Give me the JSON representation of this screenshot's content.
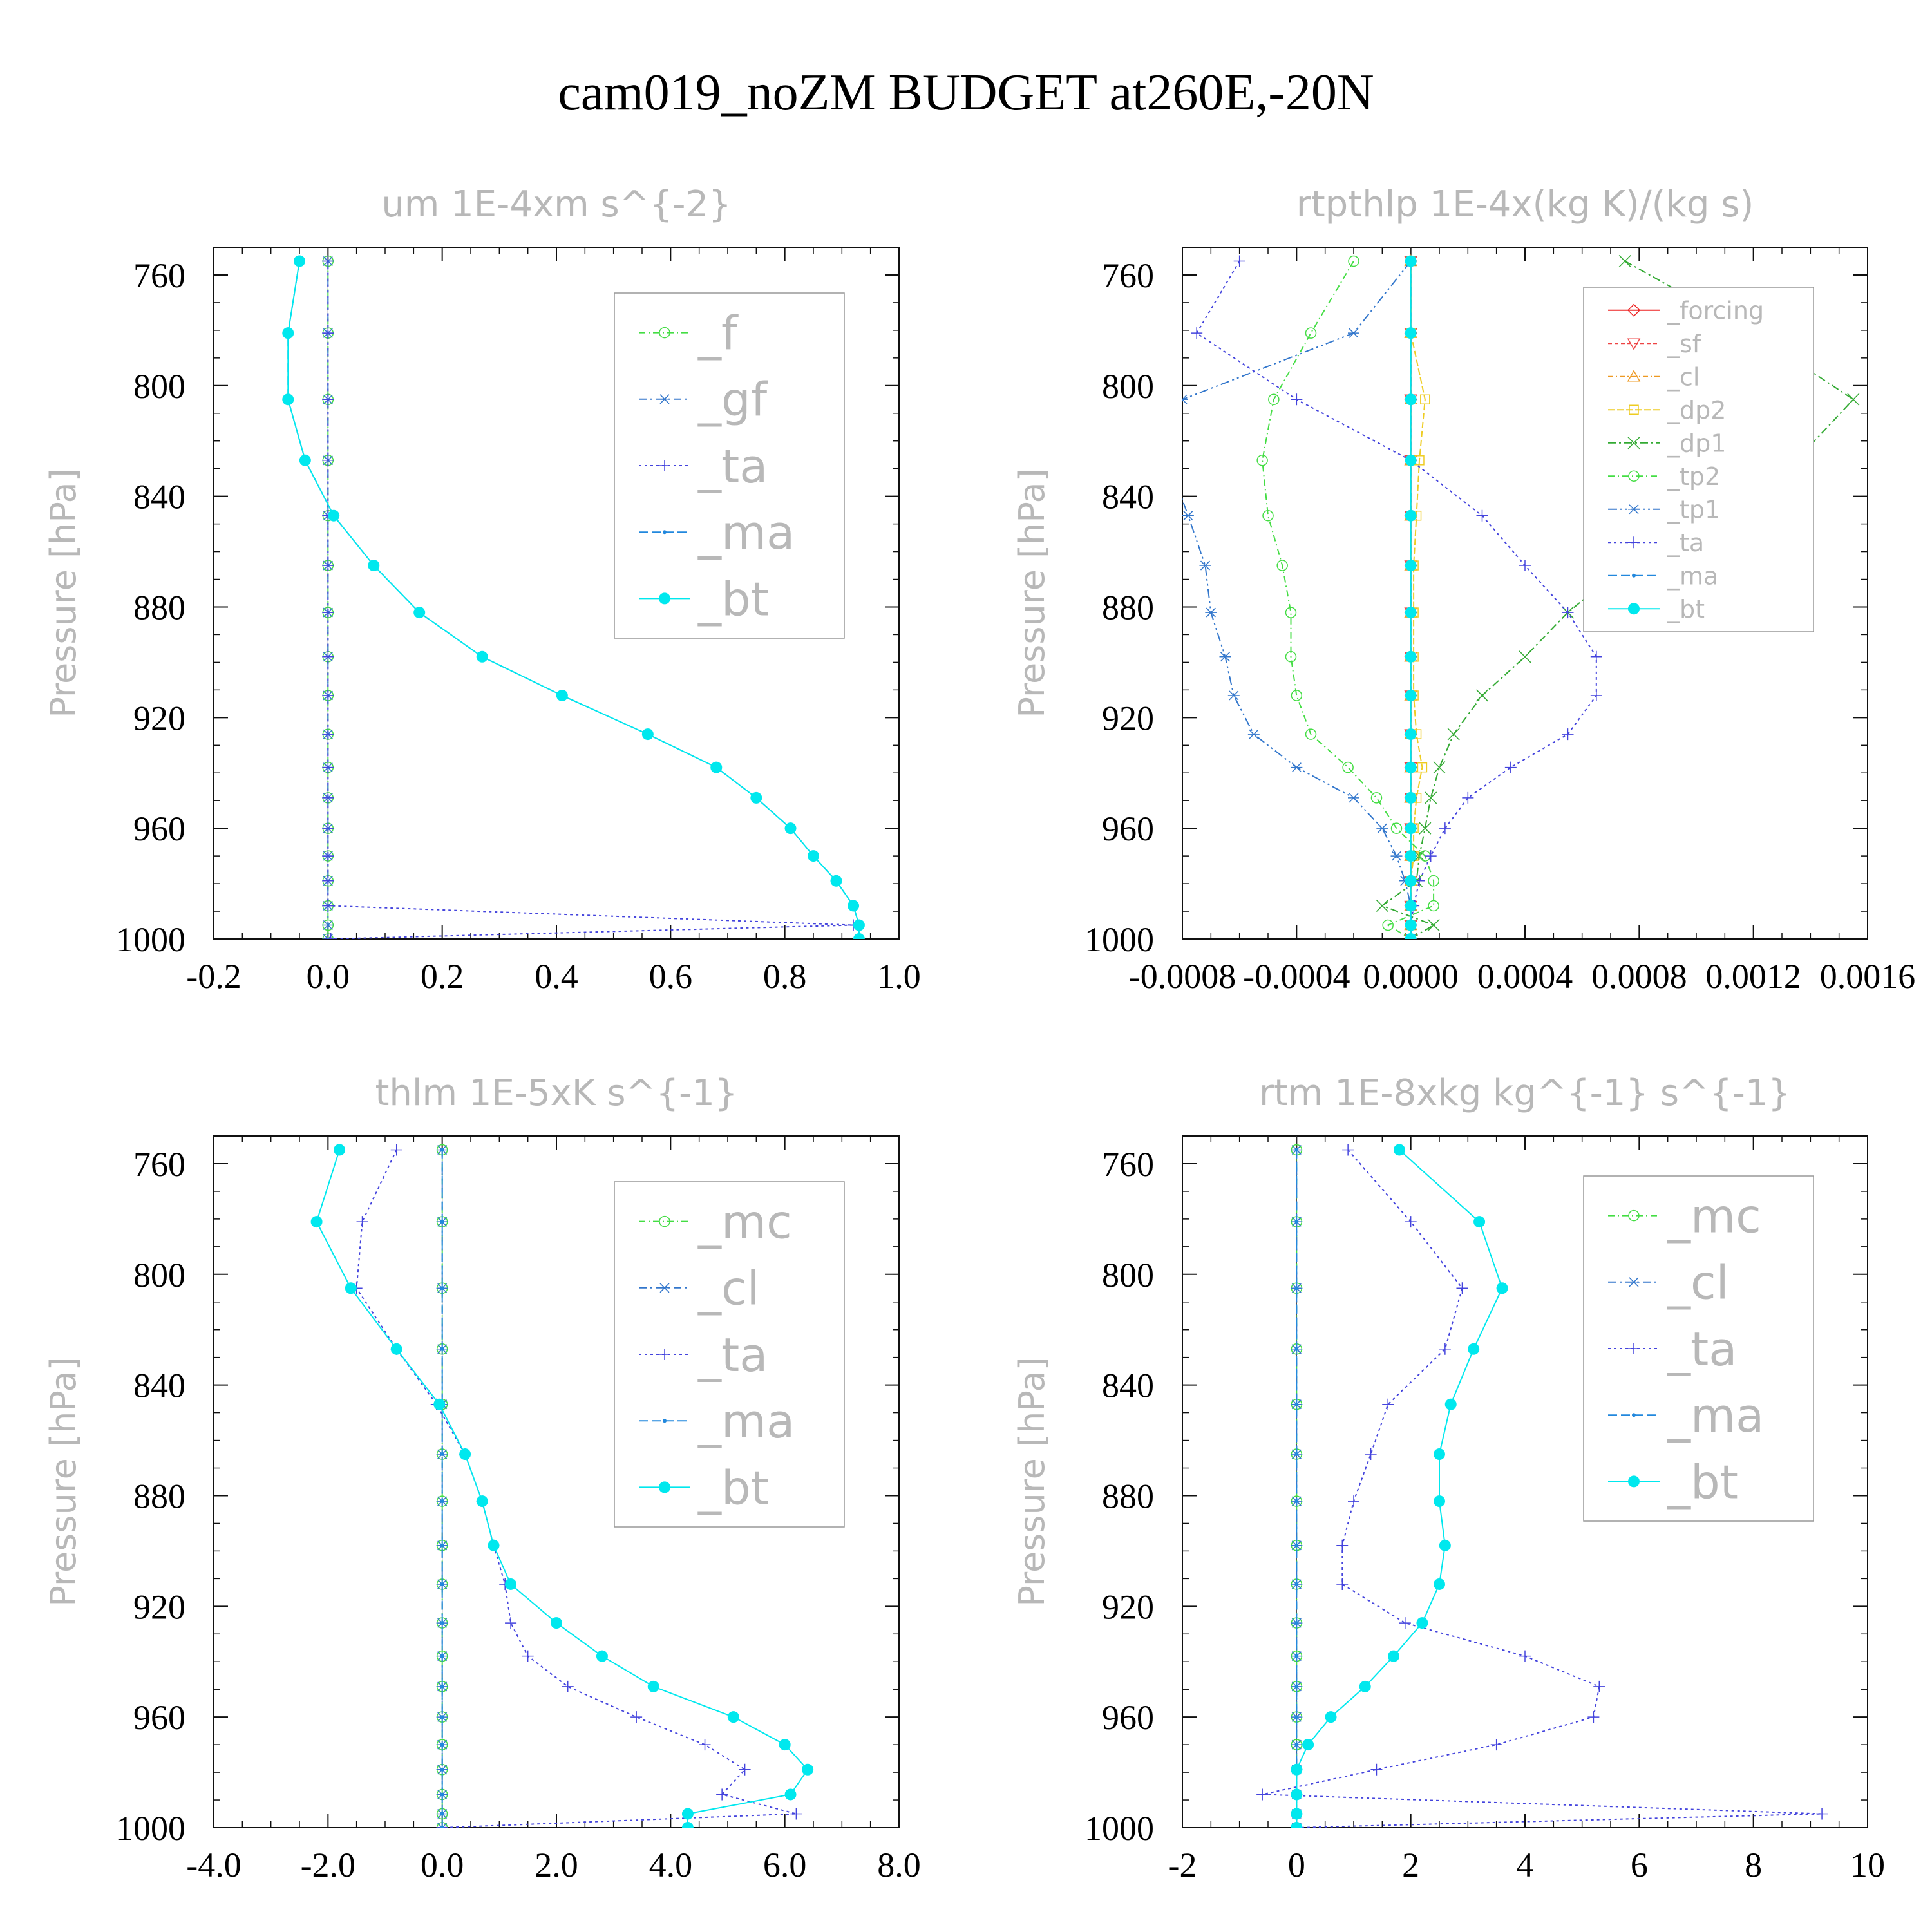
{
  "figure": {
    "title": "cam019_noZM  BUDGET at260E,-20N"
  },
  "chart_data": [
    {
      "type": "line",
      "title": "um   1E-4xm s^{-2}",
      "ylabel": "Pressure [hPa]",
      "xlim": [
        -0.2,
        1.0
      ],
      "ylim": [
        750,
        1000
      ],
      "y_inverted": true,
      "xticks": [
        -0.2,
        0.0,
        0.2,
        0.4,
        0.6,
        0.8,
        1.0
      ],
      "xtick_labels": [
        "-0.2",
        "0.0",
        "0.2",
        "0.4",
        "0.6",
        "0.8",
        "1.0"
      ],
      "yticks": [
        760,
        800,
        840,
        880,
        920,
        960,
        1000
      ],
      "ytick_labels": [
        "760",
        "800",
        "840",
        "880",
        "920",
        "960",
        "1000"
      ],
      "legend": "top-right",
      "levels": [
        755,
        781,
        805,
        827,
        847,
        865,
        882,
        898,
        912,
        926,
        938,
        949,
        960,
        970,
        979,
        988,
        995,
        1000
      ],
      "series": [
        {
          "name": "_f",
          "color": "#44dd44",
          "marker": "circle-open",
          "dash": "10,5,2,5",
          "values": [
            0,
            0,
            0,
            0,
            0,
            0,
            0,
            0,
            0,
            0,
            0,
            0,
            0,
            0,
            0,
            0,
            0,
            0
          ]
        },
        {
          "name": "_gf",
          "color": "#3377cc",
          "marker": "asterisk",
          "dash": "12,6,3,6",
          "values": [
            0,
            0,
            0,
            0,
            0,
            0,
            0,
            0,
            0,
            0,
            0,
            0,
            0,
            0,
            0,
            0,
            0,
            0
          ]
        },
        {
          "name": "_ta",
          "color": "#4444dd",
          "marker": "plus",
          "dash": "4,5",
          "values": [
            0,
            0,
            0,
            0,
            0,
            0,
            0,
            0,
            0,
            0,
            0,
            0,
            0,
            0,
            0,
            0,
            0.92,
            0.005
          ]
        },
        {
          "name": "_ma",
          "color": "#2288dd",
          "marker": "dot",
          "dash": "14,6",
          "values": [
            -0.05,
            -0.07,
            -0.07,
            -0.04,
            0.01,
            0.08,
            0.16,
            0.27,
            0.41,
            0.56,
            0.68,
            0.75,
            0.81,
            0.85,
            0.89,
            0.92,
            0.93,
            0.93
          ]
        },
        {
          "name": "_bt",
          "color": "#00e8ee",
          "marker": "filled-circle",
          "dash": "",
          "values": [
            -0.05,
            -0.07,
            -0.07,
            -0.04,
            0.01,
            0.08,
            0.16,
            0.27,
            0.41,
            0.56,
            0.68,
            0.75,
            0.81,
            0.85,
            0.89,
            0.92,
            0.93,
            0.93
          ]
        }
      ]
    },
    {
      "type": "line",
      "title": "rtpthlp   1E-4x(kg K)/(kg s)",
      "ylabel": "Pressure [hPa]",
      "xlim": [
        -0.0008,
        0.0016
      ],
      "ylim": [
        750,
        1000
      ],
      "y_inverted": true,
      "xticks": [
        -0.0008,
        -0.0004,
        0.0,
        0.0004,
        0.0008,
        0.0012,
        0.0016
      ],
      "xtick_labels": [
        "-0.0008",
        "-0.0004",
        "0.0000",
        "0.0004",
        "0.0008",
        "0.0012",
        "0.0016"
      ],
      "yticks": [
        760,
        800,
        840,
        880,
        920,
        960,
        1000
      ],
      "ytick_labels": [
        "760",
        "800",
        "840",
        "880",
        "920",
        "960",
        "1000"
      ],
      "legend": "top-right",
      "levels": [
        755,
        781,
        805,
        827,
        847,
        865,
        882,
        898,
        912,
        926,
        938,
        949,
        960,
        970,
        979,
        988,
        995,
        1000
      ],
      "series": [
        {
          "name": "_forcing",
          "color": "#ee2222",
          "marker": "diamond-open",
          "dash": "",
          "values": [
            0,
            0,
            0,
            0,
            0,
            0,
            0,
            0,
            0,
            0,
            0,
            0,
            0,
            0,
            0,
            0,
            0,
            0
          ]
        },
        {
          "name": "_sf",
          "color": "#ee4444",
          "marker": "triangle-down",
          "dash": "6,4",
          "values": [
            0,
            0,
            0,
            0,
            0,
            0,
            0,
            0,
            0,
            0,
            0,
            0,
            0,
            0,
            0,
            0,
            0,
            0
          ]
        },
        {
          "name": "_cl",
          "color": "#ee9922",
          "marker": "triangle-up",
          "dash": "8,4,2,4",
          "values": [
            0,
            0,
            0,
            0,
            0,
            0,
            0,
            0,
            0,
            0,
            0,
            0,
            0,
            0,
            0,
            0,
            0,
            0
          ]
        },
        {
          "name": "_dp2",
          "color": "#eecc22",
          "marker": "square-open",
          "dash": "10,4",
          "values": [
            0,
            0,
            5e-05,
            3e-05,
            2e-05,
            1e-05,
            1e-05,
            1e-05,
            1e-05,
            2e-05,
            4e-05,
            2e-05,
            1e-05,
            1e-05,
            0,
            0,
            0,
            0
          ]
        },
        {
          "name": "_dp1",
          "color": "#33aa33",
          "marker": "x",
          "dash": "12,5,3,5",
          "values": [
            0.00075,
            0.0012,
            0.00155,
            0.00135,
            0.00095,
            0.00075,
            0.00055,
            0.0004,
            0.00025,
            0.00015,
            0.0001,
            7e-05,
            5e-05,
            3e-05,
            2e-05,
            -0.0001,
            8e-05,
            0
          ]
        },
        {
          "name": "_tp2",
          "color": "#44dd44",
          "marker": "circle-open",
          "dash": "10,5,2,5",
          "values": [
            -0.0002,
            -0.00035,
            -0.00048,
            -0.00052,
            -0.0005,
            -0.00045,
            -0.00042,
            -0.00042,
            -0.0004,
            -0.00035,
            -0.00022,
            -0.00012,
            -5e-05,
            5e-05,
            8e-05,
            8e-05,
            -8e-05,
            0
          ]
        },
        {
          "name": "_tp1",
          "color": "#3377cc",
          "marker": "asterisk",
          "dash": "14,5,3,5,3,5",
          "values": [
            0,
            -0.0002,
            -0.0008,
            -0.00085,
            -0.00078,
            -0.00072,
            -0.0007,
            -0.00065,
            -0.00062,
            -0.00055,
            -0.0004,
            -0.0002,
            -0.0001,
            -5e-05,
            -2e-05,
            0,
            0,
            0
          ]
        },
        {
          "name": "_ta",
          "color": "#4444dd",
          "marker": "plus",
          "dash": "4,5",
          "values": [
            -0.0006,
            -0.00075,
            -0.0004,
            0.0,
            0.00025,
            0.0004,
            0.00055,
            0.00065,
            0.00065,
            0.00055,
            0.00035,
            0.0002,
            0.00012,
            7e-05,
            3e-05,
            1e-05,
            0,
            0
          ]
        },
        {
          "name": "_ma",
          "color": "#2288dd",
          "marker": "dot",
          "dash": "14,6",
          "values": [
            0,
            0,
            0,
            0,
            0,
            0,
            0,
            0,
            0,
            0,
            0,
            0,
            0,
            0,
            0,
            0,
            0,
            0
          ]
        },
        {
          "name": "_bt",
          "color": "#00e8ee",
          "marker": "filled-circle",
          "dash": "",
          "values": [
            0,
            0,
            0,
            0,
            0,
            0,
            0,
            0,
            0,
            0,
            0,
            0,
            0,
            0,
            0,
            0,
            0,
            0
          ]
        }
      ]
    },
    {
      "type": "line",
      "title": "thlm   1E-5xK s^{-1}",
      "ylabel": "Pressure [hPa]",
      "xlim": [
        -4.0,
        8.0
      ],
      "ylim": [
        750,
        1000
      ],
      "y_inverted": true,
      "xticks": [
        -4.0,
        -2.0,
        0.0,
        2.0,
        4.0,
        6.0,
        8.0
      ],
      "xtick_labels": [
        "-4.0",
        "-2.0",
        "0.0",
        "2.0",
        "4.0",
        "6.0",
        "8.0"
      ],
      "yticks": [
        760,
        800,
        840,
        880,
        920,
        960,
        1000
      ],
      "ytick_labels": [
        "760",
        "800",
        "840",
        "880",
        "920",
        "960",
        "1000"
      ],
      "legend": "top-right",
      "levels": [
        755,
        781,
        805,
        827,
        847,
        865,
        882,
        898,
        912,
        926,
        938,
        949,
        960,
        970,
        979,
        988,
        995,
        1000
      ],
      "series": [
        {
          "name": "_mc",
          "color": "#44dd44",
          "marker": "circle-open",
          "dash": "10,5,2,5",
          "values": [
            0,
            0,
            0,
            0,
            0,
            0,
            0,
            0,
            0,
            0,
            0,
            0,
            0,
            0,
            0,
            0,
            0,
            0
          ]
        },
        {
          "name": "_cl",
          "color": "#3377cc",
          "marker": "asterisk",
          "dash": "12,6,3,6",
          "values": [
            0,
            0,
            0,
            0,
            0,
            0,
            0,
            0,
            0,
            0,
            0,
            0,
            0,
            0,
            0,
            0,
            0,
            0
          ]
        },
        {
          "name": "_ta",
          "color": "#4444dd",
          "marker": "plus",
          "dash": "4,5",
          "values": [
            -0.8,
            -1.4,
            -1.5,
            -0.8,
            -0.1,
            0.4,
            0.7,
            0.9,
            1.1,
            1.2,
            1.5,
            2.2,
            3.4,
            4.6,
            5.3,
            4.9,
            6.2,
            0
          ]
        },
        {
          "name": "_ma",
          "color": "#2288dd",
          "marker": "dot",
          "dash": "14,6",
          "values": [
            0,
            0,
            0,
            0,
            0,
            0,
            0,
            0,
            0,
            0,
            0,
            0,
            0,
            0,
            0,
            0,
            0,
            0
          ]
        },
        {
          "name": "_bt",
          "color": "#00e8ee",
          "marker": "filled-circle",
          "dash": "",
          "values": [
            -1.8,
            -2.2,
            -1.6,
            -0.8,
            -0.05,
            0.4,
            0.7,
            0.9,
            1.2,
            2.0,
            2.8,
            3.7,
            5.1,
            6.0,
            6.4,
            6.1,
            4.3,
            4.3
          ]
        }
      ]
    },
    {
      "type": "line",
      "title": "rtm   1E-8xkg kg^{-1} s^{-1}",
      "ylabel": "Pressure [hPa]",
      "xlim": [
        -2,
        10
      ],
      "ylim": [
        750,
        1000
      ],
      "y_inverted": true,
      "xticks": [
        -2,
        0,
        2,
        4,
        6,
        8,
        10
      ],
      "xtick_labels": [
        "-2",
        "0",
        "2",
        "4",
        "6",
        "8",
        "10"
      ],
      "yticks": [
        760,
        800,
        840,
        880,
        920,
        960,
        1000
      ],
      "ytick_labels": [
        "760",
        "800",
        "840",
        "880",
        "920",
        "960",
        "1000"
      ],
      "legend": "top-right",
      "levels": [
        755,
        781,
        805,
        827,
        847,
        865,
        882,
        898,
        912,
        926,
        938,
        949,
        960,
        970,
        979,
        988,
        995,
        1000
      ],
      "series": [
        {
          "name": "_mc",
          "color": "#44dd44",
          "marker": "circle-open",
          "dash": "10,5,2,5",
          "values": [
            0,
            0,
            0,
            0,
            0,
            0,
            0,
            0,
            0,
            0,
            0,
            0,
            0,
            0,
            0,
            0,
            0,
            0
          ]
        },
        {
          "name": "_cl",
          "color": "#3377cc",
          "marker": "asterisk",
          "dash": "12,6,3,6",
          "values": [
            0,
            0,
            0,
            0,
            0,
            0,
            0,
            0,
            0,
            0,
            0,
            0,
            0,
            0,
            0,
            0,
            0,
            0
          ]
        },
        {
          "name": "_ta",
          "color": "#4444dd",
          "marker": "plus",
          "dash": "4,5",
          "values": [
            0.9,
            2.0,
            2.9,
            2.6,
            1.6,
            1.3,
            1.0,
            0.8,
            0.8,
            1.9,
            4.0,
            5.3,
            5.2,
            3.5,
            1.4,
            -0.6,
            9.2,
            0
          ]
        },
        {
          "name": "_ma",
          "color": "#2288dd",
          "marker": "dot",
          "dash": "14,6",
          "values": [
            0,
            0,
            0,
            0,
            0,
            0,
            0,
            0,
            0,
            0,
            0,
            0,
            0,
            0,
            0,
            0,
            0,
            0
          ]
        },
        {
          "name": "_bt",
          "color": "#00e8ee",
          "marker": "filled-circle",
          "dash": "",
          "values": [
            1.8,
            3.2,
            3.6,
            3.1,
            2.7,
            2.5,
            2.5,
            2.6,
            2.5,
            2.2,
            1.7,
            1.2,
            0.6,
            0.2,
            0,
            0,
            0,
            0
          ]
        }
      ]
    }
  ]
}
